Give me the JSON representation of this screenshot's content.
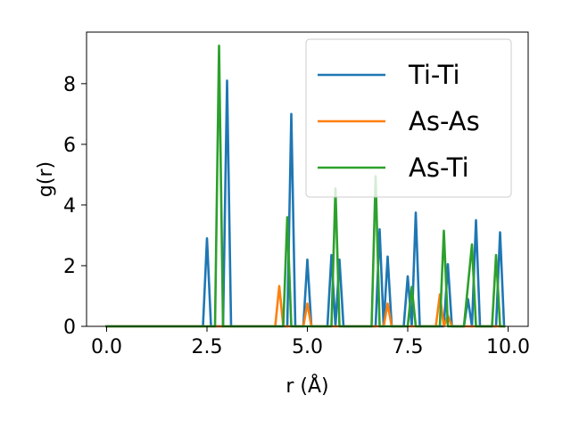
{
  "chart_data": {
    "type": "line",
    "title": "",
    "xlabel": "r (Å)",
    "ylabel": "g(r)",
    "xlim": [
      -0.5,
      10.5
    ],
    "ylim": [
      0,
      9.7
    ],
    "xticks": [
      0.0,
      2.5,
      5.0,
      7.5,
      10.0
    ],
    "xtick_labels": [
      "0.0",
      "2.5",
      "5.0",
      "7.5",
      "10.0"
    ],
    "yticks": [
      0,
      2,
      4,
      6,
      8
    ],
    "ytick_labels": [
      "0",
      "2",
      "4",
      "6",
      "8"
    ],
    "grid": false,
    "legend_position": "top-right",
    "series": [
      {
        "name": "Ti-Ti",
        "color": "#1f77b4",
        "x": [
          0,
          2.4,
          2.5,
          2.6,
          2.9,
          3.0,
          3.1,
          4.5,
          4.6,
          4.7,
          4.9,
          5.0,
          5.1,
          5.5,
          5.6,
          5.7,
          5.8,
          5.9,
          6.7,
          6.8,
          6.9,
          7.0,
          7.1,
          7.4,
          7.5,
          7.6,
          7.7,
          7.8,
          8.4,
          8.5,
          8.6,
          8.9,
          9.0,
          9.1,
          9.2,
          9.3,
          9.7,
          9.8,
          9.9
        ],
        "y": [
          0,
          0,
          2.9,
          0,
          0,
          8.1,
          0,
          0,
          7.0,
          0,
          0,
          2.2,
          0,
          0,
          2.35,
          0,
          2.2,
          0,
          0,
          3.2,
          0,
          2.3,
          0,
          0,
          1.65,
          0,
          3.75,
          0,
          0,
          2.05,
          0,
          0,
          0.9,
          0,
          3.5,
          0,
          0,
          3.1,
          0
        ]
      },
      {
        "name": "As-As",
        "color": "#ff7f0e",
        "x": [
          0,
          4.2,
          4.3,
          4.4,
          4.9,
          5.0,
          5.1,
          6.9,
          7.0,
          7.1,
          8.2,
          8.3,
          8.4,
          8.5,
          8.6,
          9.9
        ],
        "y": [
          0,
          0,
          1.33,
          0,
          0,
          0.75,
          0,
          0,
          0.75,
          0,
          0,
          1.05,
          0,
          0.35,
          0,
          0
        ]
      },
      {
        "name": "As-Ti",
        "color": "#2ca02c",
        "x": [
          0,
          2.7,
          2.8,
          2.9,
          4.4,
          4.5,
          4.6,
          5.6,
          5.7,
          5.8,
          6.6,
          6.7,
          6.8,
          7.5,
          7.6,
          7.7,
          8.3,
          8.4,
          8.5,
          8.9,
          9.1,
          9.2,
          9.6,
          9.7,
          9.8,
          9.9
        ],
        "y": [
          0,
          0,
          9.25,
          0,
          0,
          3.6,
          0,
          0,
          4.55,
          0,
          0,
          4.95,
          0,
          0,
          1.3,
          0,
          0,
          3.15,
          0,
          0,
          2.7,
          0,
          0,
          2.35,
          0,
          0
        ]
      }
    ]
  }
}
